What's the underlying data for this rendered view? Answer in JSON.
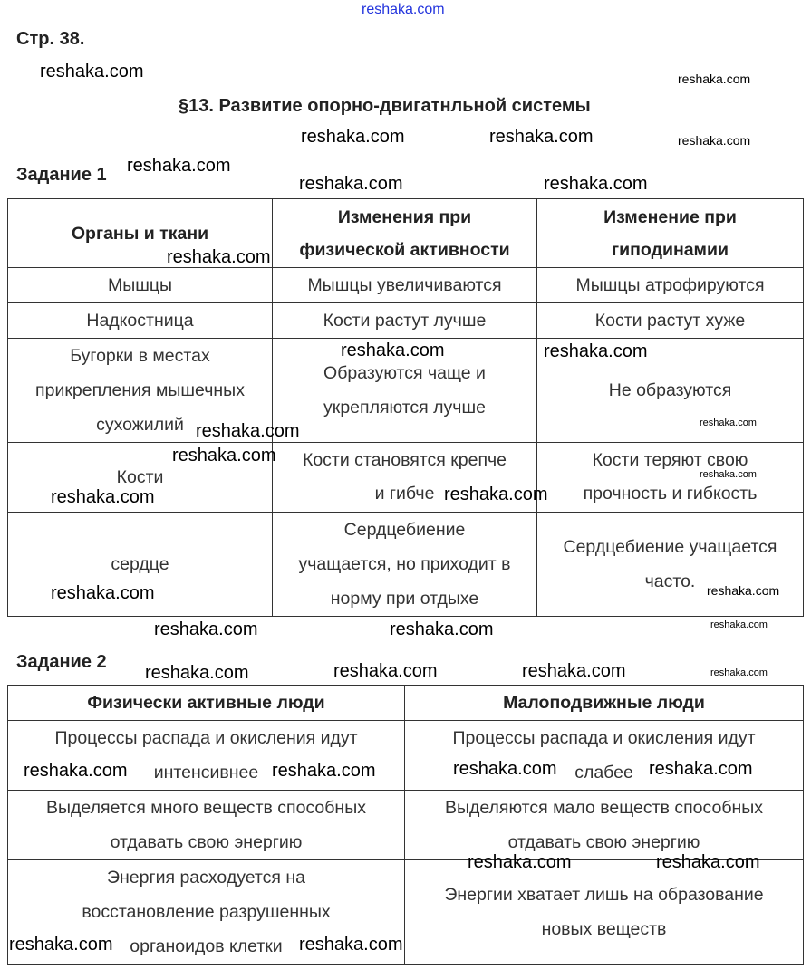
{
  "watermark": "reshaka.com",
  "page_label": "Стр. 38.",
  "title": "§13. Развитие опорно-двигатнльной системы",
  "task1": {
    "label": "Задание 1",
    "headers": [
      "Органы и ткани",
      "Изменения при\nфизической активности",
      "Изменение при\nгиподинамии"
    ],
    "rows": [
      [
        "Мышцы",
        "Мышцы увеличиваются",
        "Мышцы атрофируются"
      ],
      [
        "Надкостница",
        "Кости растут лучше",
        "Кости растут хуже"
      ],
      [
        "Бугорки в местах\nприкрепления мышечных\nсухожилий",
        "Образуются чаще и\nукрепляются лучше",
        "Не образуются"
      ],
      [
        "Кости",
        "Кости становятся крепче\nи гибче",
        "Кости теряют свою\nпрочность и гибкость"
      ],
      [
        "сердце",
        "Сердцебиение\nучащается, но приходит в\nнорму при отдыхе",
        "Сердцебиение учащается\nчасто."
      ]
    ]
  },
  "task2": {
    "label": "Задание 2",
    "headers": [
      "Физически активные люди",
      "Малоподвижные люди"
    ],
    "rows": [
      [
        "Процессы распада и окисления идут\nинтенсивнее",
        "Процессы распада и окисления идут\nслабее"
      ],
      [
        "Выделяется много веществ способных\nотдавать свою энергию",
        "Выделяются мало веществ способных\nотдавать свою энергию"
      ],
      [
        "Энергия расходуется на\nвосстановление разрушенных\nорганоидов клетки",
        "Энергии хватает лишь на образование\nновых веществ"
      ]
    ]
  }
}
